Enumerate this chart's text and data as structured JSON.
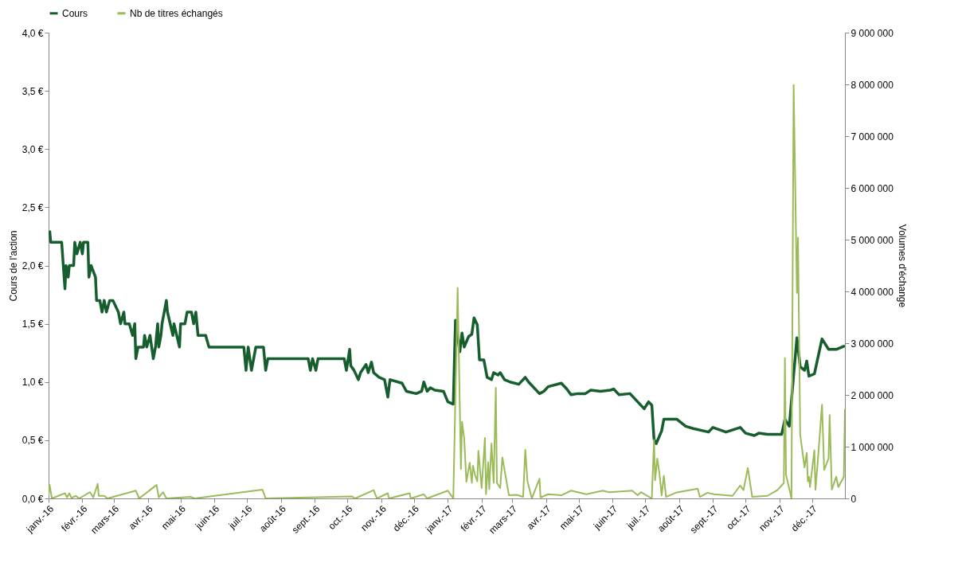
{
  "chart_data": {
    "type": "line",
    "ylabel": "Cours de l'action",
    "y2label": "Volumes d'échange",
    "legend": "top",
    "xlim": [
      "2016-01-01",
      "2017-12-31"
    ],
    "xticks": [
      {
        "value": "2016-01-01",
        "label": "janv.-16"
      },
      {
        "value": "2016-02-01",
        "label": "févr.-16"
      },
      {
        "value": "2016-03-01",
        "label": "mars-16"
      },
      {
        "value": "2016-04-01",
        "label": "avr.-16"
      },
      {
        "value": "2016-05-01",
        "label": "mai-16"
      },
      {
        "value": "2016-06-01",
        "label": "juin-16"
      },
      {
        "value": "2016-07-01",
        "label": "juil.-16"
      },
      {
        "value": "2016-08-01",
        "label": "août-16"
      },
      {
        "value": "2016-09-01",
        "label": "sept.-16"
      },
      {
        "value": "2016-10-01",
        "label": "oct.-16"
      },
      {
        "value": "2016-11-01",
        "label": "nov.-16"
      },
      {
        "value": "2016-12-01",
        "label": "déc.-16"
      },
      {
        "value": "2017-01-01",
        "label": "janv.-17"
      },
      {
        "value": "2017-02-01",
        "label": "févr.-17"
      },
      {
        "value": "2017-03-01",
        "label": "mars-17"
      },
      {
        "value": "2017-04-01",
        "label": "avr.-17"
      },
      {
        "value": "2017-05-01",
        "label": "mai-17"
      },
      {
        "value": "2017-06-01",
        "label": "juin-17"
      },
      {
        "value": "2017-07-01",
        "label": "juil.-17"
      },
      {
        "value": "2017-08-01",
        "label": "août-17"
      },
      {
        "value": "2017-09-01",
        "label": "sept.-17"
      },
      {
        "value": "2017-10-01",
        "label": "oct.-17"
      },
      {
        "value": "2017-11-01",
        "label": "nov.-17"
      },
      {
        "value": "2017-12-01",
        "label": "déc.-17"
      }
    ],
    "ylim": [
      0,
      4
    ],
    "yticks": [
      {
        "value": 0,
        "label": "0,0 €"
      },
      {
        "value": 0.5,
        "label": "0,5 €"
      },
      {
        "value": 1,
        "label": "1,0 €"
      },
      {
        "value": 1.5,
        "label": "1,5 €"
      },
      {
        "value": 2,
        "label": "2,0 €"
      },
      {
        "value": 2.5,
        "label": "2,5 €"
      },
      {
        "value": 3,
        "label": "3,0 €"
      },
      {
        "value": 3.5,
        "label": "3,5 €"
      },
      {
        "value": 4,
        "label": "4,0 €"
      }
    ],
    "y2lim": [
      0,
      9000000
    ],
    "y2ticks": [
      0,
      {
        "value": 1000000,
        "label": "1 000 000"
      },
      {
        "value": 2000000,
        "label": "2 000 000"
      },
      {
        "value": 3000000,
        "label": "3 000 000"
      },
      {
        "value": 4000000,
        "label": "4 000 000"
      },
      {
        "value": 5000000,
        "label": "5 000 000"
      },
      {
        "value": 6000000,
        "label": "6 000 000"
      },
      {
        "value": 7000000,
        "label": "7 000 000"
      },
      {
        "value": 8000000,
        "label": "8 000 000"
      },
      {
        "value": 9000000,
        "label": "9 000 000"
      }
    ],
    "series": [
      {
        "name": "Cours",
        "color": "#175e2f",
        "x": [
          "2016-01-02",
          "2016-01-03",
          "2016-01-13",
          "2016-01-16",
          "2016-01-17",
          "2016-01-19",
          "2016-01-20",
          "2016-01-24",
          "2016-01-25",
          "2016-01-27",
          "2016-01-30",
          "2016-02-01",
          "2016-02-02",
          "2016-02-06",
          "2016-02-07",
          "2016-02-09",
          "2016-02-13",
          "2016-02-14",
          "2016-02-17",
          "2016-02-19",
          "2016-02-21",
          "2016-02-23",
          "2016-02-26",
          "2016-02-29",
          "2016-03-05",
          "2016-03-07",
          "2016-03-10",
          "2016-03-11",
          "2016-03-15",
          "2016-03-18",
          "2016-03-20",
          "2016-03-21",
          "2016-03-23",
          "2016-03-28",
          "2016-03-29",
          "2016-03-31",
          "2016-04-03",
          "2016-04-06",
          "2016-04-08",
          "2016-04-10",
          "2016-04-11",
          "2016-04-13",
          "2016-04-14",
          "2016-04-16",
          "2016-04-18",
          "2016-04-19",
          "2016-04-24",
          "2016-04-25",
          "2016-04-30",
          "2016-05-01",
          "2016-05-05",
          "2016-05-07",
          "2016-05-11",
          "2016-05-13",
          "2016-05-15",
          "2016-05-17",
          "2016-05-24",
          "2016-05-27",
          "2016-06-28",
          "2016-06-30",
          "2016-07-02",
          "2016-07-05",
          "2016-07-09",
          "2016-07-16",
          "2016-07-18",
          "2016-07-20",
          "2016-08-26",
          "2016-08-28",
          "2016-08-30",
          "2016-09-02",
          "2016-09-04",
          "2016-09-28",
          "2016-09-30",
          "2016-10-03",
          "2016-10-04",
          "2016-10-07",
          "2016-10-11",
          "2016-10-13",
          "2016-10-18",
          "2016-10-20",
          "2016-10-23",
          "2016-10-25",
          "2016-10-30",
          "2016-11-04",
          "2016-11-07",
          "2016-11-09",
          "2016-11-20",
          "2016-11-24",
          "2016-12-03",
          "2016-12-08",
          "2016-12-10",
          "2016-12-13",
          "2016-12-16",
          "2016-12-20",
          "2016-12-28",
          "2017-01-01",
          "2017-01-06",
          "2017-01-08",
          "2017-01-12",
          "2017-01-14",
          "2017-01-16",
          "2017-01-20",
          "2017-01-23",
          "2017-01-25",
          "2017-01-28",
          "2017-01-30",
          "2017-02-03",
          "2017-02-06",
          "2017-02-10",
          "2017-02-12",
          "2017-02-16",
          "2017-02-18",
          "2017-02-22",
          "2017-02-27",
          "2017-03-07",
          "2017-03-13",
          "2017-03-16",
          "2017-03-26",
          "2017-03-30",
          "2017-04-03",
          "2017-04-15",
          "2017-04-20",
          "2017-04-24",
          "2017-04-30",
          "2017-05-07",
          "2017-05-12",
          "2017-05-21",
          "2017-05-30",
          "2017-06-02",
          "2017-06-07",
          "2017-06-17",
          "2017-06-24",
          "2017-06-30",
          "2017-07-04",
          "2017-07-07",
          "2017-07-09",
          "2017-07-11",
          "2017-07-16",
          "2017-07-18",
          "2017-07-30",
          "2017-08-07",
          "2017-08-14",
          "2017-08-28",
          "2017-09-01",
          "2017-09-13",
          "2017-09-26",
          "2017-10-01",
          "2017-10-09",
          "2017-10-13",
          "2017-10-21",
          "2017-11-03",
          "2017-11-06",
          "2017-11-10",
          "2017-11-14",
          "2017-11-17",
          "2017-11-20",
          "2017-11-24",
          "2017-11-26",
          "2017-11-28",
          "2017-12-03",
          "2017-12-10",
          "2017-12-16",
          "2017-12-23",
          "2017-12-31"
        ],
        "values": [
          2.3,
          2.2,
          2.2,
          1.8,
          2.0,
          1.9,
          2.0,
          2.0,
          2.2,
          2.1,
          2.2,
          2.1,
          2.2,
          2.2,
          1.9,
          2.0,
          1.9,
          1.7,
          1.7,
          1.6,
          1.7,
          1.6,
          1.7,
          1.7,
          1.6,
          1.5,
          1.6,
          1.5,
          1.5,
          1.4,
          1.5,
          1.2,
          1.3,
          1.3,
          1.4,
          1.3,
          1.4,
          1.2,
          1.3,
          1.5,
          1.3,
          1.4,
          1.5,
          1.6,
          1.7,
          1.6,
          1.4,
          1.5,
          1.3,
          1.5,
          1.5,
          1.6,
          1.6,
          1.5,
          1.6,
          1.4,
          1.4,
          1.3,
          1.3,
          1.1,
          1.3,
          1.1,
          1.3,
          1.3,
          1.1,
          1.2,
          1.2,
          1.1,
          1.2,
          1.1,
          1.2,
          1.2,
          1.1,
          1.28,
          1.14,
          1.1,
          1.02,
          1.08,
          1.15,
          1.08,
          1.17,
          1.08,
          1.04,
          1.02,
          0.87,
          1.02,
          0.99,
          0.92,
          0.9,
          0.92,
          1.0,
          0.92,
          0.95,
          0.93,
          0.92,
          0.83,
          0.81,
          1.53,
          1.26,
          1.42,
          1.3,
          1.39,
          1.41,
          1.55,
          1.49,
          1.19,
          1.19,
          1.04,
          1.02,
          1.08,
          1.06,
          1.08,
          1.02,
          1.0,
          0.98,
          1.04,
          1.0,
          0.9,
          0.92,
          0.96,
          0.99,
          0.94,
          0.89,
          0.9,
          0.9,
          0.93,
          0.92,
          0.93,
          0.94,
          0.89,
          0.9,
          0.83,
          0.77,
          0.83,
          0.8,
          0.51,
          0.47,
          0.58,
          0.68,
          0.68,
          0.62,
          0.6,
          0.57,
          0.61,
          0.57,
          0.61,
          0.56,
          0.54,
          0.56,
          0.55,
          0.55,
          0.68,
          0.62,
          1.06,
          1.38,
          1.13,
          1.1,
          1.18,
          1.05,
          1.07,
          1.37,
          1.28,
          1.28,
          1.31
        ]
      },
      {
        "name": "Nb de titres échangés",
        "color": "#9bbb59",
        "axis": "y2",
        "x": [
          "2016-01-01",
          "2016-01-02",
          "2016-01-04",
          "2016-01-16",
          "2016-01-18",
          "2016-01-20",
          "2016-01-22",
          "2016-01-26",
          "2016-01-29",
          "2016-02-08",
          "2016-02-11",
          "2016-02-15",
          "2016-02-16",
          "2016-02-21",
          "2016-02-24",
          "2016-03-21",
          "2016-03-24",
          "2016-04-09",
          "2016-04-11",
          "2016-04-15",
          "2016-04-18",
          "2016-05-10",
          "2016-05-14",
          "2016-07-15",
          "2016-07-18",
          "2016-10-05",
          "2016-10-08",
          "2016-10-25",
          "2016-10-28",
          "2016-11-07",
          "2016-11-08",
          "2016-11-27",
          "2016-11-28",
          "2016-12-10",
          "2016-12-13",
          "2017-01-01",
          "2017-01-06",
          "2017-01-10",
          "2017-01-13",
          "2017-01-14",
          "2017-01-16",
          "2017-01-18",
          "2017-01-21",
          "2017-01-23",
          "2017-01-24",
          "2017-01-26",
          "2017-01-28",
          "2017-01-29",
          "2017-02-01",
          "2017-02-04",
          "2017-02-05",
          "2017-02-07",
          "2017-02-08",
          "2017-02-10",
          "2017-02-12",
          "2017-02-14",
          "2017-02-15",
          "2017-02-18",
          "2017-02-20",
          "2017-02-26",
          "2017-03-05",
          "2017-03-11",
          "2017-03-13",
          "2017-03-15",
          "2017-03-19",
          "2017-03-26",
          "2017-03-27",
          "2017-04-03",
          "2017-04-15",
          "2017-04-24",
          "2017-05-08",
          "2017-05-23",
          "2017-05-29",
          "2017-06-19",
          "2017-06-24",
          "2017-06-27",
          "2017-07-07",
          "2017-07-09",
          "2017-07-10",
          "2017-07-12",
          "2017-07-14",
          "2017-07-16",
          "2017-07-18",
          "2017-07-20",
          "2017-07-29",
          "2017-08-18",
          "2017-08-20",
          "2017-08-27",
          "2017-09-02",
          "2017-09-19",
          "2017-09-26",
          "2017-09-29",
          "2017-10-03",
          "2017-10-07",
          "2017-10-21",
          "2017-10-30",
          "2017-11-03",
          "2017-11-05",
          "2017-11-06",
          "2017-11-07",
          "2017-11-12",
          "2017-11-14",
          "2017-11-17",
          "2017-11-18",
          "2017-11-20",
          "2017-11-24",
          "2017-11-26",
          "2017-11-27",
          "2017-11-28",
          "2017-11-29",
          "2017-12-03",
          "2017-12-04",
          "2017-12-06",
          "2017-12-10",
          "2017-12-12",
          "2017-12-16",
          "2017-12-17",
          "2017-12-19",
          "2017-12-23",
          "2017-12-25",
          "2017-12-30",
          "2017-12-31"
        ],
        "values": [
          50000,
          260000,
          0,
          100000,
          20000,
          100000,
          10000,
          50000,
          0,
          120000,
          20000,
          280000,
          50000,
          50000,
          0,
          150000,
          0,
          260000,
          20000,
          120000,
          0,
          30000,
          0,
          170000,
          0,
          40000,
          0,
          160000,
          0,
          100000,
          0,
          100000,
          0,
          80000,
          0,
          150000,
          0,
          4070000,
          570000,
          1480000,
          1160000,
          320000,
          690000,
          300000,
          630000,
          450000,
          330000,
          920000,
          200000,
          1170000,
          80000,
          700000,
          180000,
          1060000,
          300000,
          2140000,
          300000,
          200000,
          790000,
          60000,
          70000,
          30000,
          940000,
          330000,
          0,
          380000,
          20000,
          80000,
          60000,
          150000,
          80000,
          150000,
          120000,
          150000,
          60000,
          120000,
          0,
          1130000,
          350000,
          770000,
          480000,
          60000,
          440000,
          30000,
          110000,
          190000,
          30000,
          110000,
          80000,
          50000,
          250000,
          160000,
          590000,
          30000,
          50000,
          160000,
          250000,
          300000,
          2710000,
          460000,
          0,
          7990000,
          3970000,
          5040000,
          1230000,
          600000,
          880000,
          330000,
          420000,
          220000,
          930000,
          170000,
          680000,
          1810000,
          550000,
          770000,
          1610000,
          170000,
          420000,
          220000,
          420000,
          1730000
        ]
      }
    ]
  }
}
